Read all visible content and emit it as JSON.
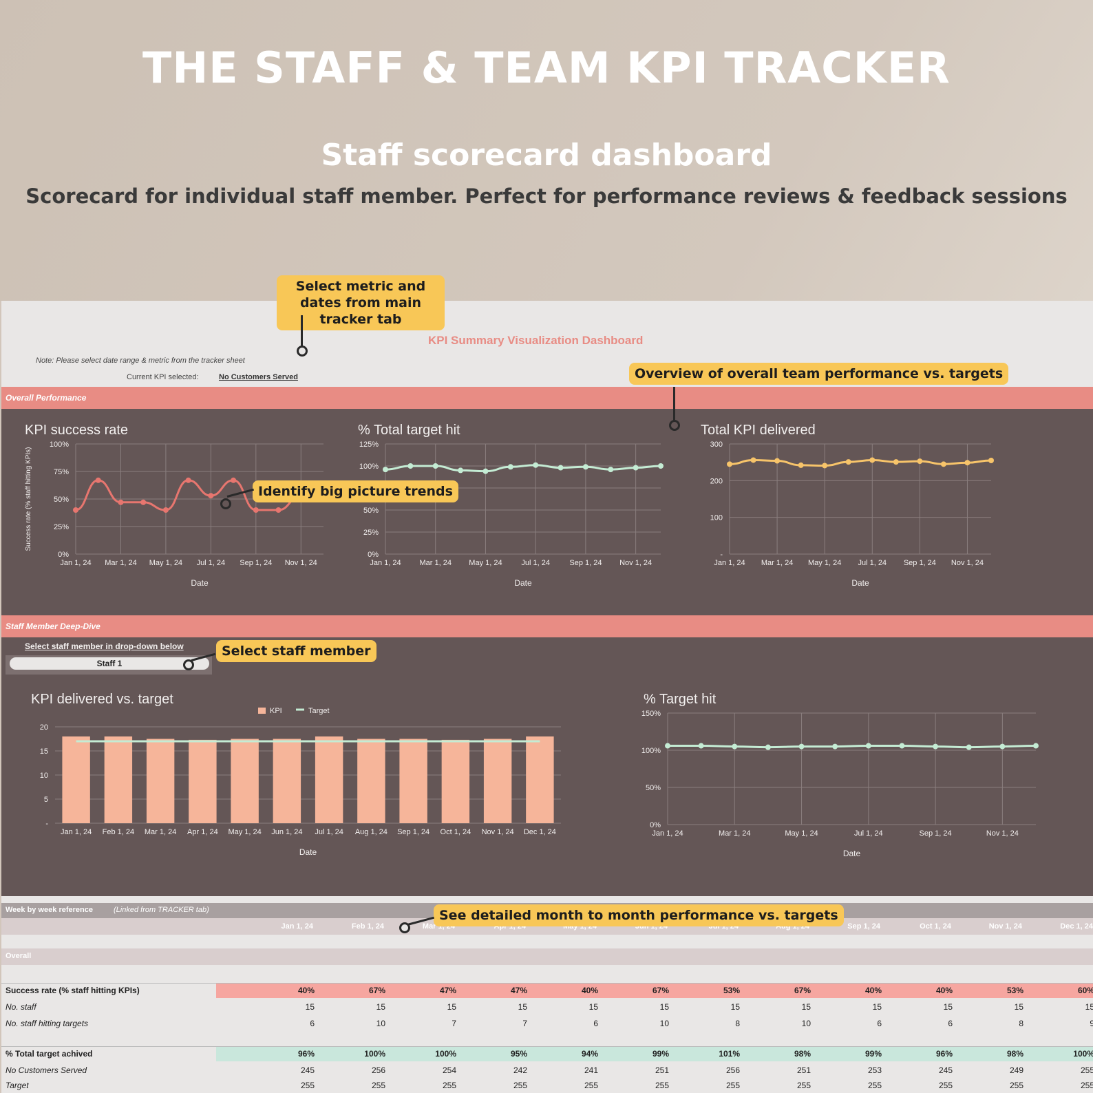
{
  "hero": {
    "title": "THE STAFF & TEAM KPI TRACKER",
    "subtitle": "Staff scorecard dashboard",
    "tagline": "Scorecard for individual staff member. Perfect for performance reviews & feedback sessions"
  },
  "callouts": {
    "select_metric": "Select metric and dates from main tracker tab",
    "overview": "Overview of overall team performance vs. targets",
    "trends": "Identify big picture trends",
    "select_staff": "Select staff member",
    "detailed": "See detailed month to month performance vs. targets"
  },
  "sheet": {
    "dashboard_title": "KPI Summary Visualization Dashboard",
    "note": "Note: Please select date range & metric from the tracker sheet",
    "current_kpi_label": "Current KPI selected:",
    "current_kpi_value": "No Customers Served",
    "overall_header": "Overall Performance",
    "deep_dive_header": "Staff Member Deep-Dive",
    "select_staff_label": "Select staff member in drop-down below",
    "staff_selected": "Staff 1",
    "week_ref_header": "Week by week reference",
    "week_ref_note": "(Linked from TRACKER tab)",
    "overall_section": "Overall"
  },
  "colors": {
    "pink": "#e88c84",
    "dark_panel": "#645656",
    "callout": "#f8c757",
    "series_pink": "#e7766f",
    "series_green": "#c4ecd4",
    "series_yellow": "#f7c46a",
    "bar": "#f6b59a"
  },
  "chart_data": [
    {
      "type": "line",
      "title": "KPI success rate",
      "ylabel": "Success rate (% staff hitting KPIs)",
      "xlabel": "Date",
      "yticks": [
        "0%",
        "25%",
        "50%",
        "75%",
        "100%"
      ],
      "xticks": [
        "Jan 1, 24",
        "Mar 1, 24",
        "May 1, 24",
        "Jul 1, 24",
        "Sep 1, 24",
        "Nov 1, 24"
      ],
      "ylim": [
        0,
        100
      ],
      "series": [
        {
          "values": [
            40,
            67,
            47,
            47,
            40,
            67,
            53,
            67,
            40,
            40,
            53,
            60
          ]
        }
      ]
    },
    {
      "type": "line",
      "title": "% Total target hit",
      "xlabel": "Date",
      "yticks": [
        "0%",
        "25%",
        "50%",
        "75%",
        "100%",
        "125%"
      ],
      "xticks": [
        "Jan 1, 24",
        "Mar 1, 24",
        "May 1, 24",
        "Jul 1, 24",
        "Sep 1, 24",
        "Nov 1, 24"
      ],
      "ylim": [
        0,
        125
      ],
      "series": [
        {
          "values": [
            96,
            100,
            100,
            95,
            94,
            99,
            101,
            98,
            99,
            96,
            98,
            100
          ]
        }
      ]
    },
    {
      "type": "line",
      "title": "Total KPI delivered",
      "xlabel": "Date",
      "yticks": [
        "-",
        "100",
        "200",
        "300"
      ],
      "xticks": [
        "Jan 1, 24",
        "Mar 1, 24",
        "May 1, 24",
        "Jul 1, 24",
        "Sep 1, 24",
        "Nov 1, 24"
      ],
      "ylim": [
        0,
        300
      ],
      "series": [
        {
          "values": [
            245,
            256,
            254,
            242,
            241,
            251,
            256,
            251,
            253,
            245,
            249,
            255
          ]
        }
      ]
    },
    {
      "type": "bar",
      "title": "KPI delivered vs. target",
      "xlabel": "Date",
      "yticks": [
        "-",
        "5",
        "10",
        "15",
        "20"
      ],
      "ylim": [
        0,
        20
      ],
      "categories": [
        "Jan 1, 24",
        "Feb 1, 24",
        "Mar 1, 24",
        "Apr 1, 24",
        "May 1, 24",
        "Jun 1, 24",
        "Jul 1, 24",
        "Aug 1, 24",
        "Sep 1, 24",
        "Oct 1, 24",
        "Nov 1, 24",
        "Dec 1, 24"
      ],
      "series": [
        {
          "name": "KPI",
          "values": [
            18,
            18,
            17.5,
            17.3,
            17.5,
            17.5,
            18,
            17.5,
            17.5,
            17.3,
            17.5,
            18
          ]
        },
        {
          "name": "Target",
          "values": [
            17,
            17,
            17,
            17,
            17,
            17,
            17,
            17,
            17,
            17,
            17,
            17
          ]
        }
      ]
    },
    {
      "type": "line",
      "title": "% Target hit",
      "xlabel": "Date",
      "yticks": [
        "0%",
        "50%",
        "100%",
        "150%"
      ],
      "xticks": [
        "Jan 1, 24",
        "Mar 1, 24",
        "May 1, 24",
        "Jul 1, 24",
        "Sep 1, 24",
        "Nov 1, 24"
      ],
      "ylim": [
        0,
        150
      ],
      "series": [
        {
          "values": [
            106,
            106,
            105,
            104,
            105,
            105,
            106,
            106,
            105,
            104,
            105,
            106
          ]
        }
      ]
    }
  ],
  "table": {
    "months": [
      "Jan 1, 24",
      "Feb 1, 24",
      "Mar 1, 24",
      "Apr 1, 24",
      "May 1, 24",
      "Jun 1, 24",
      "Jul 1, 24",
      "Aug 1, 24",
      "Sep 1, 24",
      "Oct 1, 24",
      "Nov 1, 24",
      "Dec 1, 24"
    ],
    "rows": [
      {
        "label": "Success rate (% staff hitting KPIs)",
        "values": [
          "40%",
          "67%",
          "47%",
          "47%",
          "40%",
          "67%",
          "53%",
          "67%",
          "40%",
          "40%",
          "53%",
          "60%"
        ],
        "bold": true,
        "highlight": "pink"
      },
      {
        "label": "No. staff",
        "values": [
          "15",
          "15",
          "15",
          "15",
          "15",
          "15",
          "15",
          "15",
          "15",
          "15",
          "15",
          "15"
        ]
      },
      {
        "label": "No. staff hitting targets",
        "values": [
          "6",
          "10",
          "7",
          "7",
          "6",
          "10",
          "8",
          "10",
          "6",
          "6",
          "8",
          "9"
        ]
      },
      {
        "label": "% Total target achived",
        "values": [
          "96%",
          "100%",
          "100%",
          "95%",
          "94%",
          "99%",
          "101%",
          "98%",
          "99%",
          "96%",
          "98%",
          "100%"
        ],
        "bold": true,
        "highlight": "green"
      },
      {
        "label": "No Customers Served",
        "values": [
          "245",
          "256",
          "254",
          "242",
          "241",
          "251",
          "256",
          "251",
          "253",
          "245",
          "249",
          "255"
        ]
      },
      {
        "label": "Target",
        "values": [
          "255",
          "255",
          "255",
          "255",
          "255",
          "255",
          "255",
          "255",
          "255",
          "255",
          "255",
          "255"
        ]
      }
    ]
  }
}
